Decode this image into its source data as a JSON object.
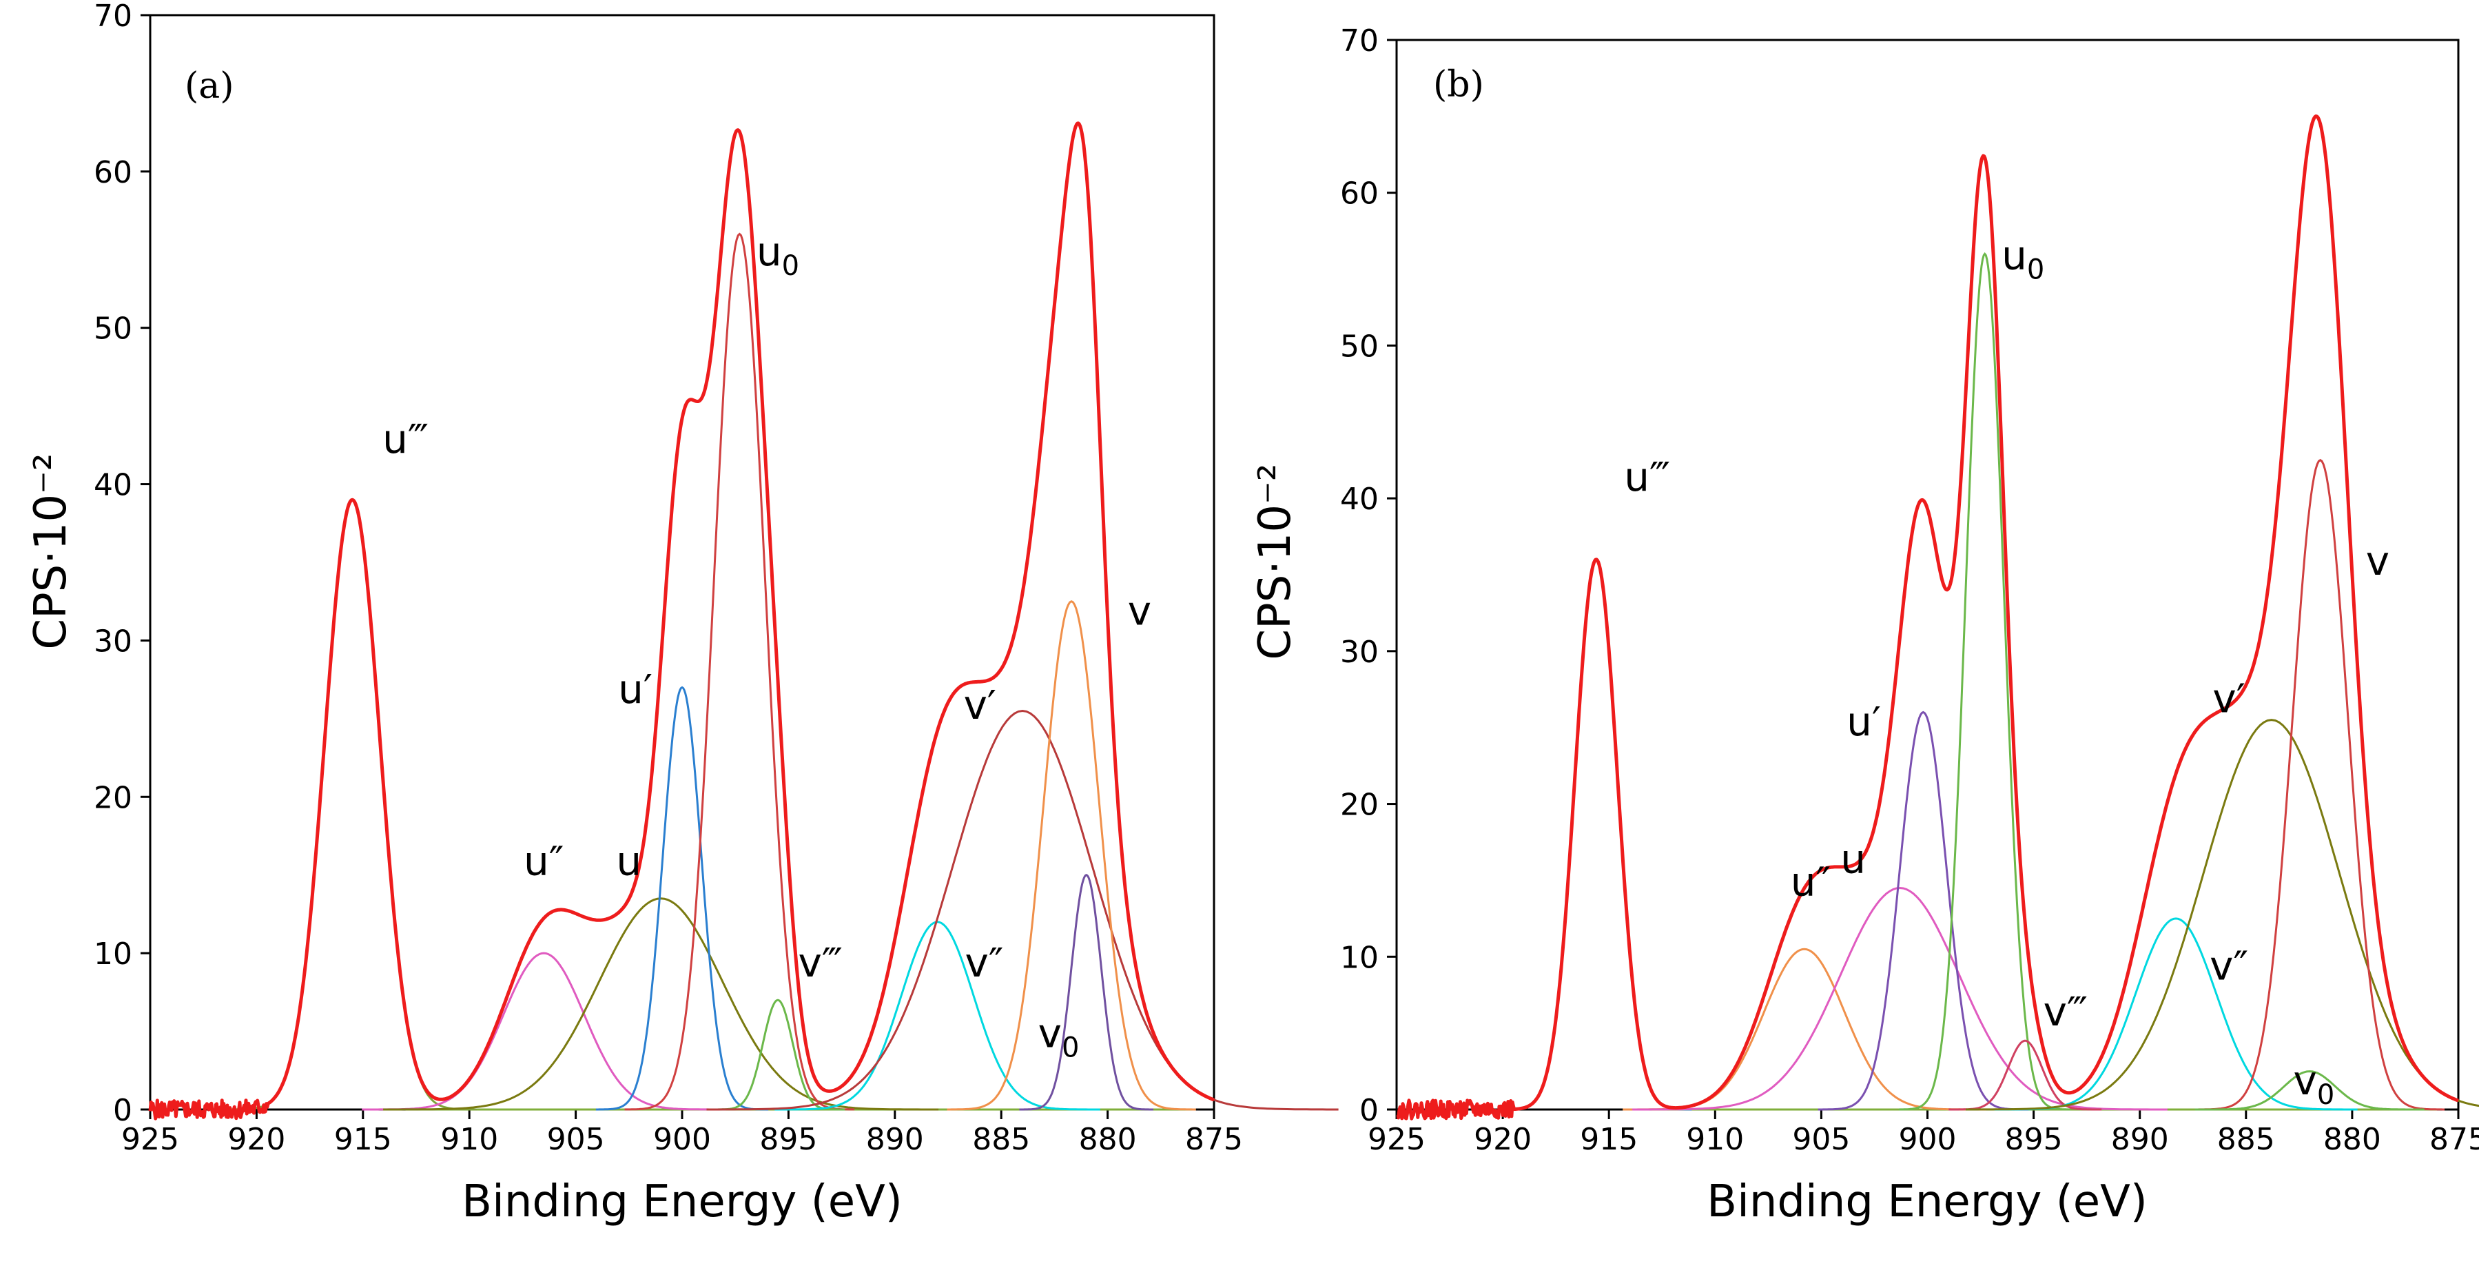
{
  "chart_data": [
    {
      "type": "line",
      "panel": "(a)",
      "xlabel": "Binding Energy (eV)",
      "ylabel": "CPS·10⁻²",
      "xlim": [
        925,
        875
      ],
      "ylim": [
        0,
        70
      ],
      "xticks": [
        925,
        920,
        915,
        910,
        905,
        900,
        895,
        890,
        885,
        880,
        875
      ],
      "xtick_labels": [
        "925",
        "920",
        "915",
        "910",
        "905",
        "900",
        "895",
        "890",
        "885",
        "880",
        "875"
      ],
      "yticks": [
        0,
        10,
        20,
        30,
        40,
        50,
        60,
        70
      ],
      "ytick_labels": [
        "0",
        "10",
        "20",
        "30",
        "40",
        "50",
        "60",
        "70"
      ],
      "series": [
        {
          "name": "u‴",
          "color": "#7fa33a",
          "center": 915.5,
          "height": 39,
          "width": 1.3
        },
        {
          "name": "u″",
          "color": "#e05bc0",
          "center": 906.5,
          "height": 10,
          "width": 1.9
        },
        {
          "name": "u",
          "color": "#7a7a10",
          "center": 901.0,
          "height": 13.5,
          "width": 2.9
        },
        {
          "name": "u′",
          "color": "#2a7fd0",
          "center": 900.0,
          "height": 27,
          "width": 0.9
        },
        {
          "name": "u0",
          "color": "#d04040",
          "center": 897.3,
          "height": 56,
          "width": 1.2
        },
        {
          "name": "v‴",
          "color": "#6bb84a",
          "center": 895.5,
          "height": 7,
          "width": 0.7
        },
        {
          "name": "v″",
          "color": "#00d8e0",
          "center": 888.0,
          "height": 12,
          "width": 1.7
        },
        {
          "name": "v′",
          "color": "#b83a3a",
          "center": 884.0,
          "height": 25.5,
          "width": 3.3
        },
        {
          "name": "v",
          "color": "#f0904a",
          "center": 881.7,
          "height": 32.5,
          "width": 1.3
        },
        {
          "name": "v0",
          "color": "#7050a0",
          "center": 881.0,
          "height": 15,
          "width": 0.7
        }
      ],
      "envelope": {
        "name": "measured",
        "color": "#ee1c1c"
      },
      "labels": [
        {
          "text": "u‴",
          "sub": "",
          "x": 913.0,
          "y": 42
        },
        {
          "text": "u″",
          "sub": "",
          "x": 906.5,
          "y": 15
        },
        {
          "text": "u",
          "sub": "",
          "x": 902.5,
          "y": 15
        },
        {
          "text": "u′",
          "sub": "",
          "x": 902.2,
          "y": 26
        },
        {
          "text": "u",
          "sub": "0",
          "x": 895.5,
          "y": 54
        },
        {
          "text": "v‴",
          "sub": "",
          "x": 893.5,
          "y": 8.5
        },
        {
          "text": "v″",
          "sub": "",
          "x": 885.8,
          "y": 8.5
        },
        {
          "text": "v′",
          "sub": "",
          "x": 886.0,
          "y": 25
        },
        {
          "text": "v",
          "sub": "",
          "x": 878.5,
          "y": 31
        },
        {
          "text": "v",
          "sub": "0",
          "x": 882.3,
          "y": 4
        }
      ]
    },
    {
      "type": "line",
      "panel": "(b)",
      "xlabel": "Binding Energy (eV)",
      "ylabel": "CPS·10⁻²",
      "xlim": [
        925,
        875
      ],
      "ylim": [
        0,
        70
      ],
      "xticks": [
        925,
        920,
        915,
        910,
        905,
        900,
        895,
        890,
        885,
        880,
        875
      ],
      "xtick_labels": [
        "925",
        "920",
        "915",
        "910",
        "905",
        "900",
        "895",
        "890",
        "885",
        "880",
        "875"
      ],
      "yticks": [
        0,
        10,
        20,
        30,
        40,
        50,
        60,
        70
      ],
      "ytick_labels": [
        "0",
        "10",
        "20",
        "30",
        "40",
        "50",
        "60",
        "70"
      ],
      "series": [
        {
          "name": "u‴",
          "color": "#2a7fd0",
          "center": 915.6,
          "height": 36,
          "width": 1.0
        },
        {
          "name": "u″",
          "color": "#f0904a",
          "center": 905.8,
          "height": 10.5,
          "width": 1.9
        },
        {
          "name": "u",
          "color": "#e05bc0",
          "center": 901.3,
          "height": 14.5,
          "width": 2.8
        },
        {
          "name": "u′",
          "color": "#7a50b0",
          "center": 900.2,
          "height": 26,
          "width": 1.1
        },
        {
          "name": "u0",
          "color": "#6bb84a",
          "center": 897.3,
          "height": 56,
          "width": 0.9
        },
        {
          "name": "v‴",
          "color": "#d04060",
          "center": 895.4,
          "height": 4.5,
          "width": 0.8
        },
        {
          "name": "v″",
          "color": "#00d8e0",
          "center": 888.3,
          "height": 12.5,
          "width": 1.9
        },
        {
          "name": "v′",
          "color": "#7a7a10",
          "center": 883.8,
          "height": 25.5,
          "width": 3.2
        },
        {
          "name": "v",
          "color": "#d04040",
          "center": 881.5,
          "height": 42.5,
          "width": 1.3
        },
        {
          "name": "v0",
          "color": "#6bb84a",
          "center": 882.0,
          "height": 2.5,
          "width": 1.2
        }
      ],
      "envelope": {
        "name": "measured",
        "color": "#ee1c1c"
      },
      "labels": [
        {
          "text": "u‴",
          "sub": "",
          "x": 913.2,
          "y": 40.5
        },
        {
          "text": "u″",
          "sub": "",
          "x": 905.5,
          "y": 14
        },
        {
          "text": "u",
          "sub": "",
          "x": 903.5,
          "y": 15.5
        },
        {
          "text": "u′",
          "sub": "",
          "x": 903.0,
          "y": 24.5
        },
        {
          "text": "u",
          "sub": "0",
          "x": 895.5,
          "y": 55
        },
        {
          "text": "v‴",
          "sub": "",
          "x": 893.5,
          "y": 5.5
        },
        {
          "text": "v″",
          "sub": "",
          "x": 885.8,
          "y": 8.5
        },
        {
          "text": "v′",
          "sub": "",
          "x": 885.8,
          "y": 26
        },
        {
          "text": "v",
          "sub": "",
          "x": 878.8,
          "y": 35
        },
        {
          "text": "v",
          "sub": "0",
          "x": 881.8,
          "y": 1
        }
      ]
    }
  ]
}
